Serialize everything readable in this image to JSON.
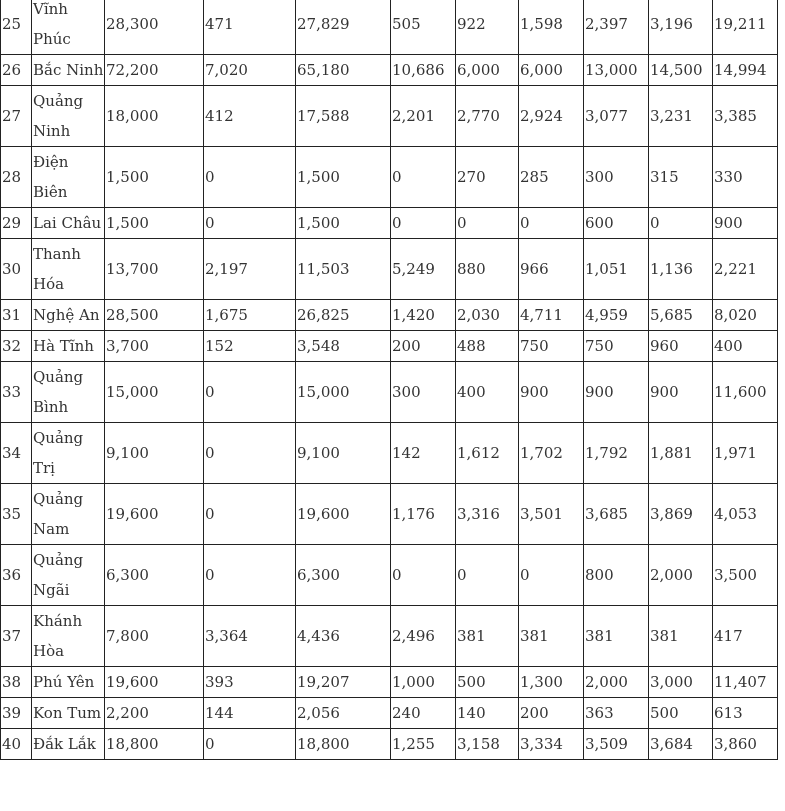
{
  "table": {
    "rows": [
      [
        "25",
        "Vĩnh Phúc",
        "28,300",
        "471",
        "27,829",
        "505",
        "922",
        "1,598",
        "2,397",
        "3,196",
        "19,211"
      ],
      [
        "26",
        "Bắc Ninh",
        "72,200",
        "7,020",
        "65,180",
        "10,686",
        "6,000",
        "6,000",
        "13,000",
        "14,500",
        "14,994"
      ],
      [
        "27",
        "Quảng Ninh",
        "18,000",
        "412",
        "17,588",
        "2,201",
        "2,770",
        "2,924",
        "3,077",
        "3,231",
        "3,385"
      ],
      [
        "28",
        "Điện Biên",
        "1,500",
        "0",
        "1,500",
        "0",
        "270",
        "285",
        "300",
        "315",
        "330"
      ],
      [
        "29",
        "Lai Châu",
        "1,500",
        "0",
        "1,500",
        "0",
        "0",
        "0",
        "600",
        "0",
        "900"
      ],
      [
        "30",
        "Thanh Hóa",
        "13,700",
        "2,197",
        "11,503",
        "5,249",
        "880",
        "966",
        "1,051",
        "1,136",
        "2,221"
      ],
      [
        "31",
        "Nghệ An",
        "28,500",
        "1,675",
        "26,825",
        "1,420",
        "2,030",
        "4,711",
        "4,959",
        "5,685",
        "8,020"
      ],
      [
        "32",
        "Hà Tĩnh",
        "3,700",
        "152",
        "3,548",
        "200",
        "488",
        "750",
        "750",
        "960",
        "400"
      ],
      [
        "33",
        "Quảng Bình",
        "15,000",
        "0",
        "15,000",
        "300",
        "400",
        "900",
        "900",
        "900",
        "11,600"
      ],
      [
        "34",
        "Quảng Trị",
        "9,100",
        "0",
        "9,100",
        "142",
        "1,612",
        "1,702",
        "1,792",
        "1,881",
        "1,971"
      ],
      [
        "35",
        "Quảng Nam",
        "19,600",
        "0",
        "19,600",
        "1,176",
        "3,316",
        "3,501",
        "3,685",
        "3,869",
        "4,053"
      ],
      [
        "36",
        "Quảng Ngãi",
        "6,300",
        "0",
        "6,300",
        "0",
        "0",
        "0",
        "800",
        "2,000",
        "3,500"
      ],
      [
        "37",
        "Khánh Hòa",
        "7,800",
        "3,364",
        "4,436",
        "2,496",
        "381",
        "381",
        "381",
        "381",
        "417"
      ],
      [
        "38",
        "Phú Yên",
        "19,600",
        "393",
        "19,207",
        "1,000",
        "500",
        "1,300",
        "2,000",
        "3,000",
        "11,407"
      ],
      [
        "39",
        "Kon Tum",
        "2,200",
        "144",
        "2,056",
        "240",
        "140",
        "200",
        "363",
        "500",
        "613"
      ],
      [
        "40",
        "Đắk Lắk",
        "18,800",
        "0",
        "18,800",
        "1,255",
        "3,158",
        "3,334",
        "3,509",
        "3,684",
        "3,860"
      ]
    ]
  }
}
